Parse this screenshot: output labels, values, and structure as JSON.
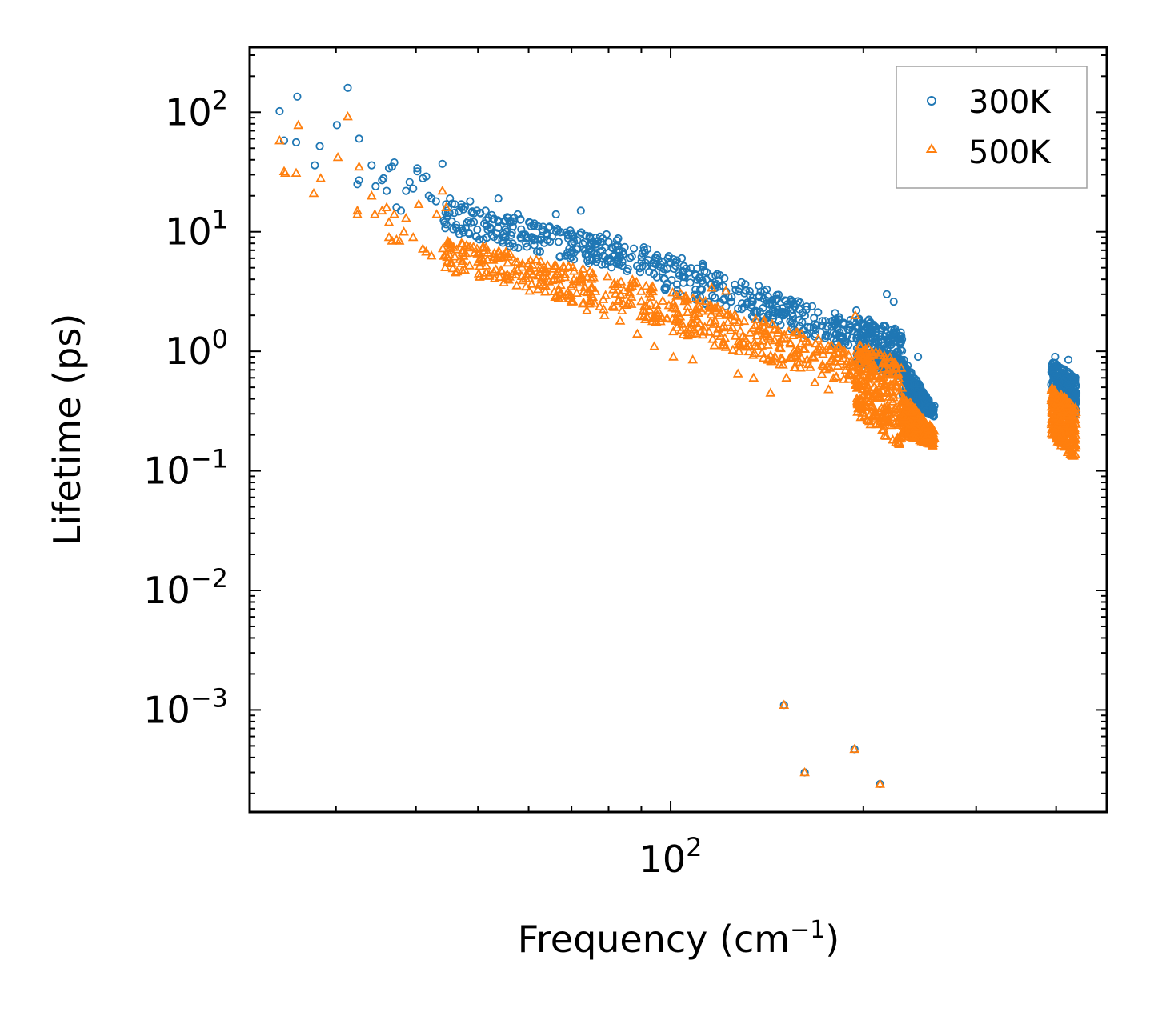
{
  "chart_data": {
    "type": "scatter",
    "xscale": "log",
    "yscale": "log",
    "xlim": [
      22,
      480
    ],
    "ylim": [
      0.00014,
      350
    ],
    "xlabel": "Frequency (cm",
    "xlabel_sup": "−1",
    "xlabel_end": ")",
    "ylabel": "Lifetime (ps)",
    "x_ticks": [
      {
        "base": "10",
        "exp": "2",
        "value": 100
      }
    ],
    "y_ticks": [
      {
        "base": "10",
        "exp": "2",
        "value": 100
      },
      {
        "base": "10",
        "exp": "1",
        "value": 10
      },
      {
        "base": "10",
        "exp": "0",
        "value": 1
      },
      {
        "base": "10",
        "exp": "−1",
        "value": 0.1
      },
      {
        "base": "10",
        "exp": "−2",
        "value": 0.01
      },
      {
        "base": "10",
        "exp": "−3",
        "value": 0.001
      }
    ],
    "legend_position": "top-right",
    "series": [
      {
        "name": "300K",
        "marker": "circle",
        "color": "#1f77b4",
        "points": [
          [
            24.5,
            102
          ],
          [
            24.9,
            58
          ],
          [
            26.0,
            56
          ],
          [
            26.1,
            135
          ],
          [
            27.8,
            36
          ],
          [
            28.3,
            52
          ],
          [
            30.1,
            78
          ],
          [
            31.3,
            160
          ],
          [
            32.6,
            60
          ],
          [
            32.6,
            27
          ],
          [
            32.4,
            25
          ],
          [
            34.1,
            36
          ],
          [
            34.6,
            24
          ],
          [
            35.4,
            27
          ],
          [
            35.6,
            28
          ],
          [
            36.0,
            22
          ],
          [
            36.3,
            34
          ],
          [
            36.7,
            35
          ],
          [
            37.0,
            38
          ],
          [
            37.3,
            16
          ],
          [
            37.9,
            15
          ],
          [
            38.6,
            22
          ],
          [
            39.1,
            26
          ],
          [
            39.6,
            23
          ],
          [
            40.2,
            34
          ],
          [
            40.2,
            32
          ],
          [
            41.0,
            28
          ],
          [
            41.5,
            29
          ],
          [
            41.9,
            20
          ],
          [
            42.3,
            19
          ],
          [
            43.0,
            18
          ],
          [
            44.0,
            37
          ],
          [
            44.6,
            17
          ],
          [
            45.2,
            19
          ],
          [
            46.0,
            17
          ],
          [
            47.1,
            17
          ],
          [
            48.6,
            18
          ],
          [
            49.8,
            15
          ],
          [
            51.4,
            15
          ],
          [
            53.8,
            19
          ],
          [
            55.7,
            13
          ],
          [
            57.7,
            14
          ],
          [
            60.1,
            12
          ],
          [
            63.2,
            11
          ],
          [
            66.2,
            14
          ],
          [
            69.1,
            9.5
          ],
          [
            72.4,
            15
          ],
          [
            75.7,
            8.2
          ],
          [
            79.4,
            9.5
          ],
          [
            82.8,
            8.8
          ],
          [
            87.0,
            6.2
          ],
          [
            92.2,
            5.8
          ],
          [
            97.1,
            5.6
          ],
          [
            104.1,
            6.0
          ],
          [
            112.2,
            5.4
          ],
          [
            120.8,
            3.5
          ],
          [
            131.1,
            3.2
          ],
          [
            142.5,
            2.5
          ],
          [
            155.1,
            1.8
          ],
          [
            167.5,
            1.9
          ],
          [
            178.7,
            1.6
          ],
          [
            195.0,
            2.2
          ],
          [
            207.0,
            1.5
          ],
          [
            217.5,
            3.0
          ],
          [
            223.0,
            2.6
          ],
          [
            243.4,
            0.9
          ],
          [
            258.2,
            0.35
          ],
          [
            398.6,
            0.9
          ],
          [
            418.1,
            0.85
          ],
          [
            430.3,
            0.45
          ]
        ],
        "bands": [
          {
            "x_start": 44,
            "x_end": 97,
            "y_top_start": 18,
            "y_top_end": 7,
            "y_bottom_start": 10,
            "y_bottom_end": 4
          },
          {
            "x_start": 97,
            "x_end": 195,
            "y_top_start": 7,
            "y_top_end": 1.8,
            "y_bottom_start": 3.2,
            "y_bottom_end": 1.0
          },
          {
            "x_start": 195,
            "x_end": 230,
            "y_top_start": 2.0,
            "y_top_end": 1.5,
            "y_bottom_start": 0.8,
            "y_bottom_end": 0.6
          },
          {
            "x_start": 230,
            "x_end": 258,
            "y_top_start": 0.9,
            "y_top_end": 0.33,
            "y_bottom_start": 0.4,
            "y_bottom_end": 0.28
          },
          {
            "x_start": 393,
            "x_end": 430,
            "y_top_start": 0.85,
            "y_top_end": 0.6,
            "y_bottom_start": 0.35,
            "y_bottom_end": 0.3
          }
        ],
        "outliers": [
          [
            150.4,
            0.0011
          ],
          [
            162.0,
            0.0003
          ],
          [
            193.7,
            0.00047
          ],
          [
            212.3,
            0.00024
          ]
        ]
      },
      {
        "name": "500K",
        "marker": "triangle",
        "color": "#ff7f0e",
        "points": [
          [
            24.5,
            58
          ],
          [
            24.9,
            32
          ],
          [
            25.0,
            31
          ],
          [
            26.0,
            31
          ],
          [
            26.2,
            78
          ],
          [
            27.7,
            21
          ],
          [
            28.4,
            28
          ],
          [
            30.2,
            42
          ],
          [
            31.3,
            92
          ],
          [
            32.6,
            35
          ],
          [
            32.4,
            14
          ],
          [
            32.4,
            15
          ],
          [
            34.1,
            20
          ],
          [
            34.5,
            14
          ],
          [
            35.4,
            15
          ],
          [
            36.0,
            16
          ],
          [
            36.3,
            12
          ],
          [
            36.3,
            9
          ],
          [
            36.7,
            8.4
          ],
          [
            37.0,
            14
          ],
          [
            37.3,
            8.6
          ],
          [
            37.7,
            8.4
          ],
          [
            38.3,
            10
          ],
          [
            38.6,
            13
          ],
          [
            39.6,
            9
          ],
          [
            40.4,
            17
          ],
          [
            41.0,
            7.2
          ],
          [
            41.5,
            6.8
          ],
          [
            42.3,
            6.3
          ],
          [
            43.1,
            14
          ],
          [
            44.0,
            22
          ],
          [
            44.6,
            16
          ],
          [
            45.2,
            8
          ],
          [
            46.0,
            6.2
          ],
          [
            47.1,
            8
          ],
          [
            48.6,
            7.5
          ],
          [
            50.6,
            5.5
          ],
          [
            52.9,
            4.6
          ],
          [
            56.0,
            4.2
          ],
          [
            60.2,
            3.2
          ],
          [
            63.2,
            3.6
          ],
          [
            66.8,
            2.8
          ],
          [
            70.1,
            2.6
          ],
          [
            74.0,
            2.2
          ],
          [
            78.8,
            2.0
          ],
          [
            83.4,
            1.8
          ],
          [
            88.7,
            1.4
          ],
          [
            94.3,
            1.1
          ],
          [
            101.0,
            0.9
          ],
          [
            108.3,
            0.85
          ],
          [
            115.9,
            3.4
          ],
          [
            122.0,
            3.2
          ],
          [
            127.4,
            0.65
          ],
          [
            134.8,
            0.6
          ],
          [
            143.2,
            0.45
          ],
          [
            151.7,
            0.6
          ],
          [
            168.0,
            0.55
          ],
          [
            176.5,
            0.48
          ],
          [
            194.3,
            2.0
          ],
          [
            205.5,
            0.35
          ]
        ],
        "bands": [
          {
            "x_start": 44,
            "x_end": 97,
            "y_top_start": 9,
            "y_top_end": 3.5,
            "y_bottom_start": 4.8,
            "y_bottom_end": 1.7
          },
          {
            "x_start": 97,
            "x_end": 195,
            "y_top_start": 3.5,
            "y_top_end": 1.0,
            "y_bottom_start": 1.5,
            "y_bottom_end": 0.5
          },
          {
            "x_start": 195,
            "x_end": 230,
            "y_top_start": 1.2,
            "y_top_end": 0.8,
            "y_bottom_start": 0.3,
            "y_bottom_end": 0.15
          },
          {
            "x_start": 230,
            "x_end": 258,
            "y_top_start": 0.45,
            "y_top_end": 0.22,
            "y_bottom_start": 0.2,
            "y_bottom_end": 0.16
          },
          {
            "x_start": 393,
            "x_end": 430,
            "y_top_start": 0.5,
            "y_top_end": 0.35,
            "y_bottom_start": 0.2,
            "y_bottom_end": 0.12
          }
        ],
        "outliers": [
          [
            150.4,
            0.0011
          ],
          [
            162.0,
            0.0003
          ],
          [
            193.7,
            0.00047
          ],
          [
            212.3,
            0.00024
          ]
        ]
      }
    ]
  },
  "legend": {
    "items": [
      {
        "label": "300K",
        "color": "#1f77b4",
        "marker": "circle"
      },
      {
        "label": "500K",
        "color": "#ff7f0e",
        "marker": "triangle"
      }
    ]
  }
}
